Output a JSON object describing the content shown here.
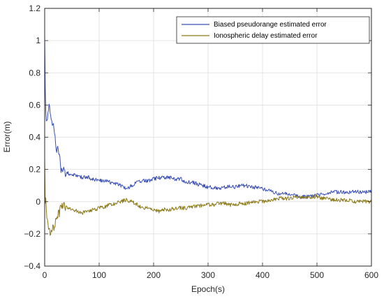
{
  "chart_data": {
    "type": "line",
    "title": "",
    "xlabel": "Epoch(s)",
    "ylabel": "Error(m)",
    "xlim": [
      0,
      600
    ],
    "ylim": [
      -0.4,
      1.2
    ],
    "xticks": [
      0,
      100,
      200,
      300,
      400,
      500,
      600
    ],
    "yticks": [
      -0.4,
      -0.2,
      0,
      0.2,
      0.4,
      0.6,
      0.8,
      1,
      1.2
    ],
    "xtick_labels": [
      "0",
      "100",
      "200",
      "300",
      "400",
      "500",
      "600"
    ],
    "ytick_labels": [
      "−0.4",
      "−0.2",
      "0",
      "0.2",
      "0.4",
      "0.6",
      "0.8",
      "1",
      "1.2"
    ],
    "grid": true,
    "legend_position": "top-right",
    "series": [
      {
        "name": "Biased pseudorange estimated error",
        "color": "#3a4fb4",
        "x": [
          0,
          1,
          2,
          3,
          5,
          8,
          10,
          12,
          15,
          18,
          20,
          22,
          25,
          28,
          30,
          35,
          40,
          50,
          60,
          70,
          80,
          90,
          100,
          110,
          120,
          130,
          140,
          150,
          160,
          170,
          180,
          190,
          200,
          210,
          220,
          230,
          240,
          250,
          260,
          270,
          280,
          290,
          300,
          310,
          320,
          330,
          340,
          350,
          360,
          370,
          380,
          390,
          400,
          410,
          420,
          430,
          440,
          450,
          460,
          470,
          480,
          490,
          500,
          510,
          520,
          530,
          540,
          550,
          560,
          570,
          580,
          590,
          600
        ],
        "y": [
          1.05,
          0.72,
          0.55,
          0.5,
          0.52,
          0.58,
          0.56,
          0.5,
          0.46,
          0.45,
          0.36,
          0.33,
          0.33,
          0.26,
          0.2,
          0.19,
          0.18,
          0.17,
          0.16,
          0.15,
          0.15,
          0.14,
          0.13,
          0.13,
          0.12,
          0.11,
          0.1,
          0.08,
          0.1,
          0.12,
          0.13,
          0.13,
          0.14,
          0.15,
          0.15,
          0.15,
          0.14,
          0.14,
          0.12,
          0.12,
          0.11,
          0.1,
          0.09,
          0.09,
          0.08,
          0.09,
          0.1,
          0.09,
          0.1,
          0.1,
          0.09,
          0.09,
          0.08,
          0.07,
          0.06,
          0.05,
          0.05,
          0.04,
          0.04,
          0.03,
          0.03,
          0.03,
          0.04,
          0.05,
          0.05,
          0.06,
          0.06,
          0.06,
          0.06,
          0.06,
          0.06,
          0.06,
          0.07
        ]
      },
      {
        "name": "Ionospheric delay estimated error",
        "color": "#8c7a1a",
        "x": [
          0,
          1,
          2,
          3,
          5,
          8,
          10,
          12,
          15,
          18,
          20,
          22,
          25,
          28,
          30,
          35,
          40,
          50,
          60,
          70,
          80,
          90,
          100,
          110,
          120,
          130,
          140,
          150,
          160,
          170,
          180,
          190,
          200,
          210,
          220,
          230,
          240,
          250,
          260,
          270,
          280,
          290,
          300,
          310,
          320,
          330,
          340,
          350,
          360,
          370,
          380,
          390,
          400,
          410,
          420,
          430,
          440,
          450,
          460,
          470,
          480,
          490,
          500,
          510,
          520,
          530,
          540,
          550,
          560,
          570,
          580,
          590,
          600
        ],
        "y": [
          0.3,
          0.0,
          0.02,
          -0.05,
          -0.12,
          -0.16,
          -0.18,
          -0.19,
          -0.17,
          -0.15,
          -0.13,
          -0.11,
          -0.08,
          -0.06,
          -0.04,
          -0.03,
          -0.03,
          -0.05,
          -0.06,
          -0.07,
          -0.06,
          -0.05,
          -0.04,
          -0.03,
          -0.02,
          -0.01,
          0.0,
          0.01,
          0.0,
          -0.02,
          -0.04,
          -0.04,
          -0.05,
          -0.06,
          -0.05,
          -0.05,
          -0.04,
          -0.04,
          -0.04,
          -0.03,
          -0.03,
          -0.02,
          -0.02,
          -0.02,
          -0.01,
          -0.01,
          -0.02,
          -0.02,
          -0.01,
          -0.01,
          0.0,
          0.0,
          0.0,
          0.01,
          0.01,
          0.02,
          0.02,
          0.02,
          0.03,
          0.03,
          0.03,
          0.03,
          0.03,
          0.02,
          0.02,
          0.01,
          0.01,
          0.01,
          0.01,
          0.0,
          0.0,
          0.0,
          0.0
        ]
      }
    ]
  },
  "colors": {
    "plot_background": "#ffffff",
    "grid": "#dedede",
    "axis": "#262626"
  }
}
